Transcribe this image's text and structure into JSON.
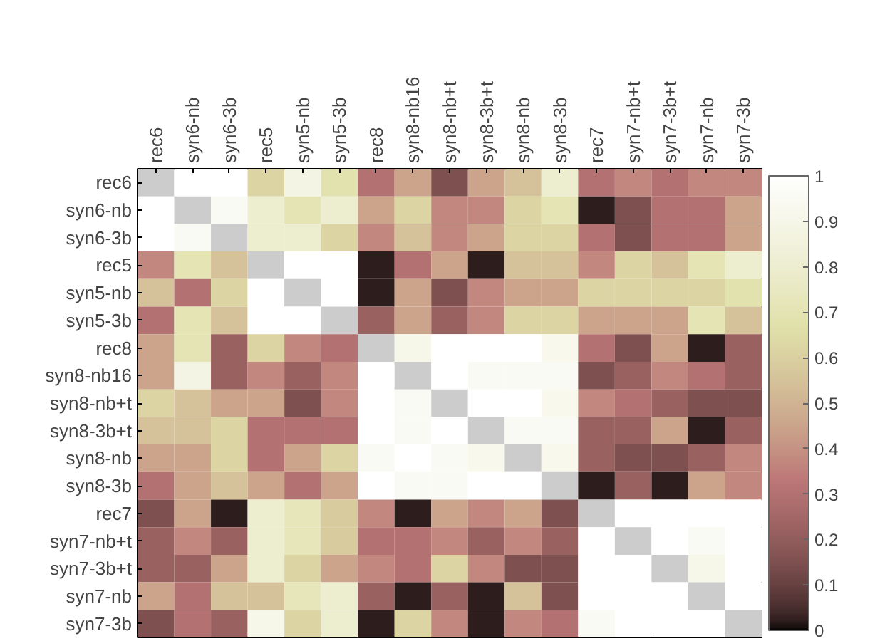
{
  "chart_data": {
    "type": "heatmap",
    "categories": [
      "rec6",
      "syn6-nb",
      "syn6-3b",
      "rec5",
      "syn5-nb",
      "syn5-3b",
      "rec8",
      "syn8-nb16",
      "syn8-nb+t",
      "syn8-3b+t",
      "syn8-nb",
      "syn8-3b",
      "rec7",
      "syn7-nb+t",
      "syn7-3b+t",
      "syn7-nb",
      "syn7-3b"
    ],
    "y_categories": [
      "rec6",
      "syn6-nb",
      "syn6-3b",
      "rec5",
      "syn5-nb",
      "syn5-3b",
      "rec8",
      "syn8-nb16",
      "syn8-nb+t",
      "syn8-3b+t",
      "syn8-nb",
      "syn8-3b",
      "rec7",
      "syn7-nb+t",
      "syn7-3b+t",
      "syn7-nb",
      "syn7-3b"
    ],
    "cells": [
      [
        null,
        1,
        1,
        0.62,
        0.88,
        0.68,
        0.3,
        0.45,
        0.15,
        0.45,
        0.55,
        0.8,
        0.3,
        0.37,
        0.3,
        0.37,
        0.37
      ],
      [
        1,
        null,
        0.95,
        0.8,
        0.7,
        0.8,
        0.45,
        0.62,
        0.37,
        0.37,
        0.62,
        0.7,
        0.02,
        0.15,
        0.3,
        0.3,
        0.45
      ],
      [
        1,
        0.95,
        null,
        0.8,
        0.8,
        0.62,
        0.37,
        0.55,
        0.37,
        0.45,
        0.62,
        0.62,
        0.3,
        0.15,
        0.3,
        0.3,
        0.45
      ],
      [
        0.37,
        0.7,
        0.55,
        null,
        1,
        1,
        0.02,
        0.3,
        0.45,
        0.02,
        0.55,
        0.55,
        0.37,
        0.62,
        0.55,
        0.7,
        0.8
      ],
      [
        0.55,
        0.3,
        0.62,
        1,
        null,
        1,
        0.02,
        0.45,
        0.15,
        0.37,
        0.45,
        0.45,
        0.62,
        0.62,
        0.62,
        0.62,
        0.68
      ],
      [
        0.3,
        0.7,
        0.55,
        1,
        1,
        null,
        0.22,
        0.45,
        0.22,
        0.37,
        0.62,
        0.62,
        0.45,
        0.45,
        0.45,
        0.7,
        0.55
      ],
      [
        0.45,
        0.7,
        0.22,
        0.62,
        0.37,
        0.3,
        null,
        0.9,
        1,
        1,
        1,
        0.92,
        0.3,
        0.15,
        0.45,
        0.02,
        0.22
      ],
      [
        0.45,
        0.88,
        0.22,
        0.37,
        0.22,
        0.37,
        1,
        null,
        1,
        0.95,
        0.95,
        0.95,
        0.15,
        0.22,
        0.37,
        0.3,
        0.22
      ],
      [
        0.62,
        0.55,
        0.45,
        0.45,
        0.15,
        0.37,
        1,
        0.95,
        null,
        1,
        1,
        0.92,
        0.37,
        0.3,
        0.22,
        0.15,
        0.15
      ],
      [
        0.55,
        0.55,
        0.62,
        0.3,
        0.3,
        0.3,
        1,
        0.95,
        1,
        null,
        0.95,
        0.95,
        0.22,
        0.22,
        0.45,
        0.02,
        0.22
      ],
      [
        0.45,
        0.45,
        0.62,
        0.3,
        0.45,
        0.62,
        0.95,
        1,
        0.95,
        0.92,
        null,
        0.92,
        0.22,
        0.15,
        0.15,
        0.22,
        0.37
      ],
      [
        0.3,
        0.45,
        0.55,
        0.45,
        0.3,
        0.45,
        1,
        0.95,
        0.95,
        1,
        1,
        null,
        0.02,
        0.22,
        0.02,
        0.45,
        0.37
      ],
      [
        0.15,
        0.45,
        0.02,
        0.8,
        0.72,
        0.58,
        0.37,
        0.02,
        0.45,
        0.37,
        0.45,
        0.15,
        null,
        1,
        1,
        1,
        1
      ],
      [
        0.22,
        0.37,
        0.22,
        0.8,
        0.72,
        0.58,
        0.3,
        0.3,
        0.37,
        0.22,
        0.37,
        0.22,
        1,
        null,
        1,
        0.95,
        1
      ],
      [
        0.22,
        0.22,
        0.45,
        0.8,
        0.62,
        0.45,
        0.37,
        0.3,
        0.62,
        0.37,
        0.15,
        0.15,
        1,
        1,
        null,
        0.9,
        1
      ],
      [
        0.45,
        0.3,
        0.55,
        0.55,
        0.72,
        0.8,
        0.22,
        0.02,
        0.22,
        0.02,
        0.55,
        0.15,
        1,
        1,
        1,
        null,
        1
      ],
      [
        0.15,
        0.3,
        0.22,
        0.9,
        0.62,
        0.8,
        0.02,
        0.62,
        0.37,
        0.02,
        0.37,
        0.3,
        0.95,
        1,
        1,
        1,
        null
      ]
    ],
    "clim": [
      0,
      1
    ],
    "cticks": [
      0,
      0.1,
      0.2,
      0.3,
      0.4,
      0.5,
      0.6,
      0.7,
      0.8,
      0.9,
      1
    ]
  }
}
